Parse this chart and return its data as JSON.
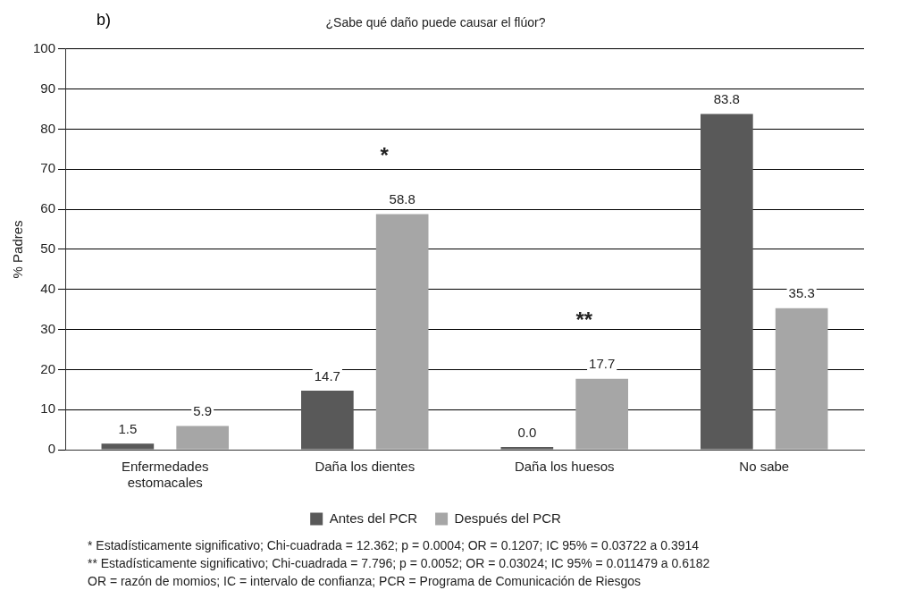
{
  "chart_data": {
    "type": "bar",
    "title": "¿Sabe qué daño puede causar el flúor?",
    "ylabel": "% Padres",
    "categories": [
      "Enfermedades estomacales",
      "Daña los dientes",
      "Daña los huesos",
      "No sabe"
    ],
    "series": [
      {
        "name": "Antes del PCR",
        "color": "#595959",
        "values": [
          1.5,
          14.7,
          0.0,
          83.8
        ],
        "value_labels": [
          "1.5",
          "14.7",
          "0.0",
          "83.8"
        ]
      },
      {
        "name": "Después del PCR",
        "color": "#a6a6a6",
        "values": [
          5.9,
          58.8,
          17.7,
          35.3
        ],
        "value_labels": [
          "5.9",
          "58.8",
          "17.7",
          "35.3"
        ]
      }
    ],
    "ylim": [
      0,
      100
    ],
    "yticks": [
      0,
      10,
      20,
      30,
      40,
      50,
      60,
      70,
      80,
      90,
      100
    ],
    "grid": "y",
    "legend": "bottom",
    "annotations": [
      "b)",
      "*",
      "**",
      "* Estadísticamente significativo; Chi-cuadrada = 12.362; p = 0.0004; OR = 0.1207; IC 95% = 0.03722 a 0.3914",
      "** Estadísticamente significativo; Chi-cuadrada = 7.796; p = 0.0052; OR = 0.03024; IC 95% = 0.011479 a 0.6182",
      "OR = razón de momios; IC = intervalo de confianza; PCR = Programa de Comunicación de Riesgos"
    ]
  }
}
